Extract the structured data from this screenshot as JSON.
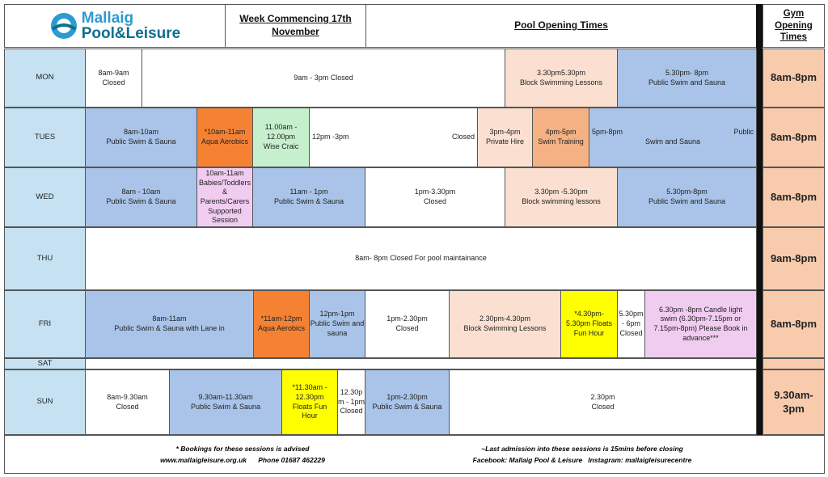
{
  "header": {
    "logo_line1": "Mallaig",
    "logo_line2": "Pool&Leisure",
    "week": [
      "Week Commencing 17th",
      "November"
    ],
    "pool_title": "Pool Opening Times",
    "gym_title": [
      "Gym",
      "Opening",
      "Times"
    ]
  },
  "rows": [
    {
      "day": "MON",
      "gym": "8am-8pm",
      "sessions": [
        {
          "lines": [
            "8am-9am",
            "Closed"
          ],
          "color": "#ffffff"
        },
        {
          "lines": [
            "9am - 3pm Closed"
          ],
          "color": "#ffffff"
        },
        {
          "lines": [
            "3.30pm5.30pm",
            "Block Swimming Lessons"
          ],
          "color": "#fbe0d2"
        },
        {
          "lines": [
            "5.30pm- 8pm",
            "Public Swim and Sauna"
          ],
          "color": "#a9c4e8"
        }
      ]
    },
    {
      "day": "TUES",
      "gym": "8am-8pm",
      "sessions": [
        {
          "lines": [
            "8am-10am",
            "Public Swim & Sauna"
          ],
          "color": "#a9c4e8"
        },
        {
          "lines": [
            "*10am-11am",
            "Aqua Aerobics"
          ],
          "color": "#f58233"
        },
        {
          "lines": [
            "11.00am -",
            "12.00pm",
            "Wise Craic"
          ],
          "color": "#c6efce"
        },
        {
          "lines": [
            "12pm -3pm",
            "Closed"
          ],
          "color": "#ffffff"
        },
        {
          "lines": [
            "3pm-4pm",
            "Private Hire"
          ],
          "color": "#fbe0d2"
        },
        {
          "lines": [
            "4pm-5pm",
            "Swim Training"
          ],
          "color": "#f4b183"
        },
        {
          "lines": [
            "5pm-8pm",
            "Public",
            "Swim and Sauna"
          ],
          "color": "#a9c4e8"
        }
      ]
    },
    {
      "day": "WED",
      "gym": "8am-8pm",
      "sessions": [
        {
          "lines": [
            "8am - 10am",
            "Public Swim & Sauna"
          ],
          "color": "#a9c4e8"
        },
        {
          "lines": [
            "10am-11am",
            "Babies/Toddlers",
            "&",
            "Parents/Carers",
            "Supported",
            "Session"
          ],
          "color": "#f0cdf0"
        },
        {
          "lines": [
            "11am - 1pm",
            "Public Swim & Sauna"
          ],
          "color": "#a9c4e8"
        },
        {
          "lines": [
            "1pm-3.30pm",
            "Closed"
          ],
          "color": "#ffffff"
        },
        {
          "lines": [
            "3.30pm -5.30pm",
            "Block swimming lessons"
          ],
          "color": "#fbe0d2"
        },
        {
          "lines": [
            "5.30pm-8pm",
            "Public Swim and Sauna"
          ],
          "color": "#a9c4e8"
        }
      ]
    },
    {
      "day": "THU",
      "gym": "9am-8pm",
      "sessions": [
        {
          "lines": [
            "8am- 8pm Closed For pool maintainance"
          ],
          "color": "#ffffff"
        }
      ]
    },
    {
      "day": "FRI",
      "gym": "8am-8pm",
      "sessions": [
        {
          "lines": [
            "8am-11am",
            "Public Swim & Sauna with Lane in"
          ],
          "color": "#a9c4e8"
        },
        {
          "lines": [
            "*11am-12pm",
            "Aqua Aerobics"
          ],
          "color": "#f58233"
        },
        {
          "lines": [
            "12pm-1pm",
            "Public Swim and",
            "sauna"
          ],
          "color": "#a9c4e8"
        },
        {
          "lines": [
            "1pm-2.30pm",
            "Closed"
          ],
          "color": "#ffffff"
        },
        {
          "lines": [
            "2.30pm-4.30pm",
            "Block Swimming Lessons"
          ],
          "color": "#fbe0d2"
        },
        {
          "lines": [
            "*4.30pm-",
            "5.30pm Floats",
            "Fun Hour"
          ],
          "color": "#ffff00"
        },
        {
          "lines": [
            "5.30pm",
            "- 6pm",
            "Closed"
          ],
          "color": "#ffffff"
        },
        {
          "lines": [
            "6.30pm -8pm Candle light",
            "swim  (6.30pm-7.15pm or",
            "7.15pm-8pm) Please Book in",
            "advance***"
          ],
          "color": "#f0cdf0"
        }
      ]
    },
    {
      "day": "SAT",
      "gym": "",
      "sessions": []
    },
    {
      "day": "SUN",
      "gym": "9.30am-3pm",
      "sessions": [
        {
          "lines": [
            "8am-9.30am",
            "Closed"
          ],
          "color": "#ffffff"
        },
        {
          "lines": [
            "9.30am-11.30am",
            "Public Swim & Sauna"
          ],
          "color": "#a9c4e8"
        },
        {
          "lines": [
            "*11.30am -",
            "12.30pm",
            "Floats Fun",
            "Hour"
          ],
          "color": "#ffff00"
        },
        {
          "lines": [
            "12.30p",
            "m - 1pm",
            "Closed"
          ],
          "color": "#ffffff"
        },
        {
          "lines": [
            "1pm-2.30pm",
            "Public Swim & Sauna"
          ],
          "color": "#a9c4e8"
        },
        {
          "lines": [
            "2.30pm",
            "Closed"
          ],
          "color": "#ffffff"
        }
      ]
    }
  ],
  "footer": {
    "left": [
      "* Bookings for these sessions is advised",
      "www.mallaigleisure.org.uk      Phone 01687 462229"
    ],
    "right": [
      "~Last admission into these sessions is 15mins before closing",
      "Facebook: Mallaig Pool & Leisure   Instagram: mallaigleisurecentre"
    ]
  }
}
